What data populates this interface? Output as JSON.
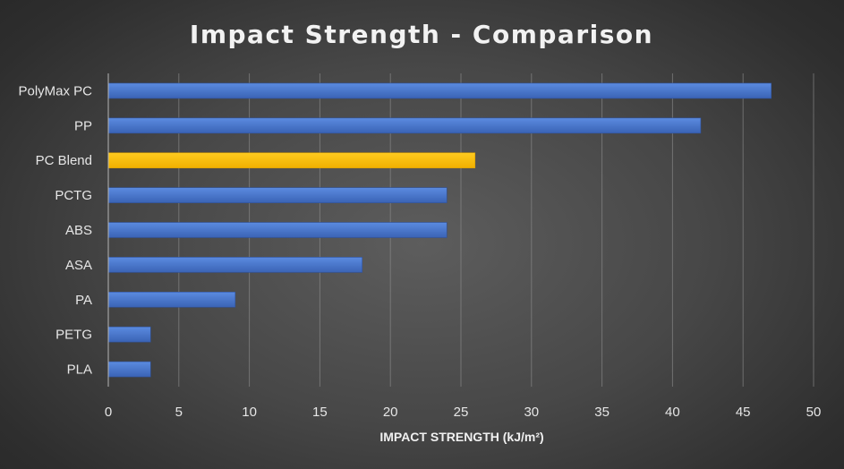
{
  "chart_data": {
    "type": "bar",
    "orientation": "horizontal",
    "title": "Impact Strength - Comparison",
    "xlabel": "IMPACT STRENGTH (kJ/m²)",
    "ylabel": "",
    "xlim": [
      0,
      50
    ],
    "xticks": [
      0,
      5,
      10,
      15,
      20,
      25,
      30,
      35,
      40,
      45,
      50
    ],
    "grid": "vertical",
    "legend": "none",
    "categories": [
      "PolyMax PC",
      "PP",
      "PC Blend",
      "PCTG",
      "ABS",
      "ASA",
      "PA",
      "PETG",
      "PLA"
    ],
    "values": [
      47,
      42,
      26,
      24,
      24,
      18,
      9,
      3,
      3
    ],
    "highlight_category": "PC Blend",
    "colors": {
      "bar": "#4472c4",
      "highlight": "#ffc000",
      "gridline": "#8a8a8a",
      "text": "#e6e6e6"
    }
  }
}
